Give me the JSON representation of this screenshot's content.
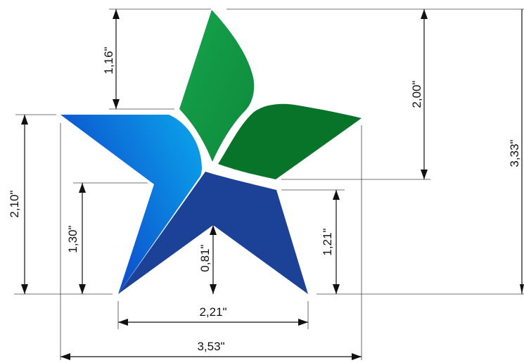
{
  "colors": {
    "blue_light": "#0b9ae8",
    "blue_mid": "#0d56d4",
    "blue_dark": "#1a3f97",
    "green_light": "#15a04a",
    "green_dark": "#08742a",
    "line": "#111111"
  },
  "dimensions": {
    "top_left_vertical": "1,16\"",
    "left_outer_vertical": "2,10\"",
    "left_inner_vertical": "1,30\"",
    "center_vertical": "0,81\"",
    "right_inner_vertical": "1,21\"",
    "right_mid_vertical": "2,00\"",
    "right_outer_vertical": "3,33\"",
    "bottom_inner_horizontal": "2,21\"",
    "bottom_outer_horizontal": "3,53\""
  }
}
